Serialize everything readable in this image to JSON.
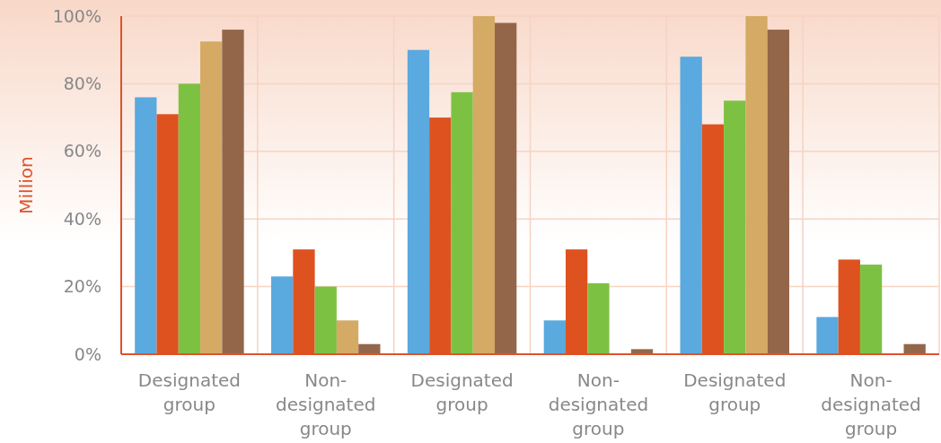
{
  "chart_data": {
    "type": "bar",
    "ylabel": "Million",
    "categories": [
      "Designated group",
      "Non-designated group",
      "Designated group",
      "Non-designated group",
      "Designated group",
      "Non-designated group"
    ],
    "series": [
      {
        "color": "#5aa9df",
        "values": [
          76,
          23,
          90,
          10,
          88,
          11
        ]
      },
      {
        "color": "#de5220",
        "values": [
          71,
          31,
          70,
          31,
          68,
          28
        ]
      },
      {
        "color": "#7dc143",
        "values": [
          80,
          20,
          77.5,
          21,
          75,
          26.5
        ]
      },
      {
        "color": "#d4aa64",
        "values": [
          92.5,
          10,
          100,
          0,
          100,
          0
        ]
      },
      {
        "color": "#93664a",
        "values": [
          96,
          3,
          98,
          1.5,
          96,
          3
        ]
      }
    ],
    "ylim": [
      0,
      100
    ],
    "yticks": [
      {
        "value": 0,
        "label": "0%"
      },
      {
        "value": 20,
        "label": "20%"
      },
      {
        "value": 40,
        "label": "40%"
      },
      {
        "value": 60,
        "label": "60%"
      },
      {
        "value": 80,
        "label": "80%"
      },
      {
        "value": 100,
        "label": "100%"
      }
    ],
    "grid": true
  }
}
